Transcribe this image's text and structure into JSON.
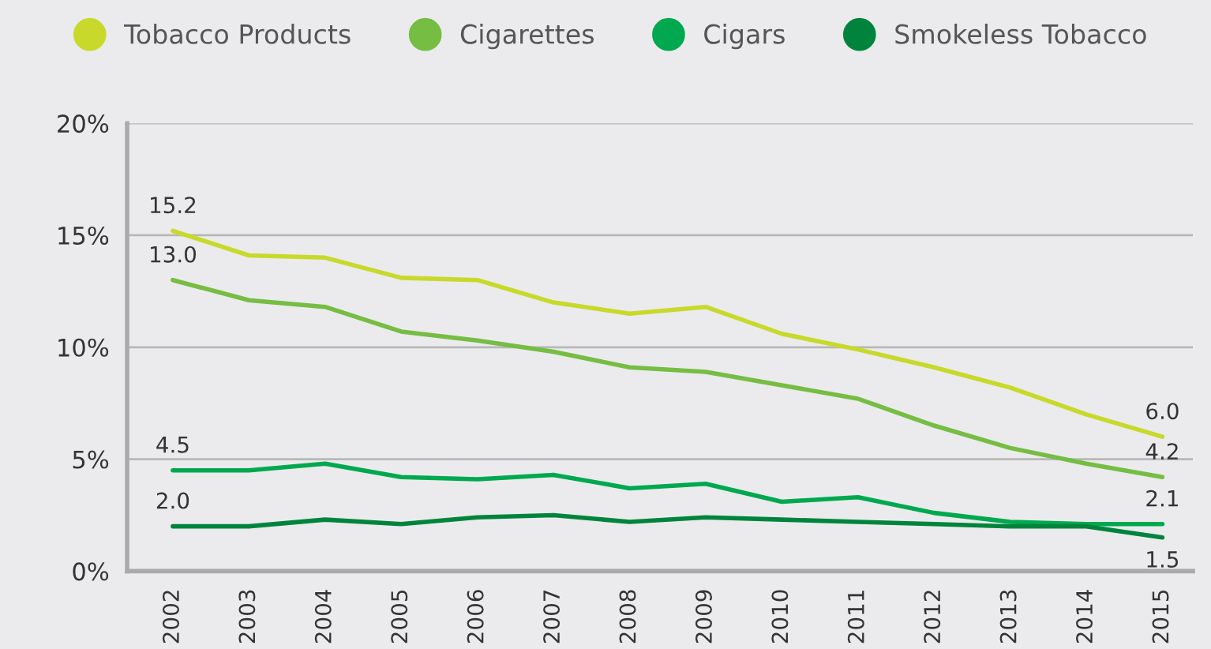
{
  "chart_data": {
    "type": "line",
    "categories": [
      "2002",
      "2003",
      "2004",
      "2005",
      "2006",
      "2007",
      "2008",
      "2009",
      "2010",
      "2011",
      "2012",
      "2013",
      "2014",
      "2015"
    ],
    "series": [
      {
        "name": "Tobacco Products",
        "color": "#c8d92b",
        "values": [
          15.2,
          14.1,
          14.0,
          13.1,
          13.0,
          12.0,
          11.5,
          11.8,
          10.6,
          9.9,
          9.1,
          8.2,
          7.0,
          6.0
        ],
        "value_labels": [
          "15.2",
          null,
          null,
          null,
          null,
          null,
          null,
          null,
          null,
          null,
          null,
          null,
          null,
          "6.0"
        ]
      },
      {
        "name": "Cigarettes",
        "color": "#76bd43",
        "values": [
          13.0,
          12.1,
          11.8,
          10.7,
          10.3,
          9.8,
          9.1,
          8.9,
          8.3,
          7.7,
          6.5,
          5.5,
          4.8,
          4.2
        ],
        "value_labels": [
          "13.0",
          null,
          null,
          null,
          null,
          null,
          null,
          null,
          null,
          null,
          null,
          null,
          null,
          "4.2"
        ]
      },
      {
        "name": "Cigars",
        "color": "#00a94f",
        "values": [
          4.5,
          4.5,
          4.8,
          4.2,
          4.1,
          4.3,
          3.7,
          3.9,
          3.1,
          3.3,
          2.6,
          2.2,
          2.1,
          2.1
        ],
        "value_labels": [
          "4.5",
          null,
          null,
          null,
          null,
          null,
          null,
          null,
          null,
          null,
          null,
          null,
          null,
          "2.1"
        ]
      },
      {
        "name": "Smokeless Tobacco",
        "color": "#00843d",
        "values": [
          2.0,
          2.0,
          2.3,
          2.1,
          2.4,
          2.5,
          2.2,
          2.4,
          2.3,
          2.2,
          2.1,
          2.0,
          2.0,
          1.5
        ],
        "value_labels": [
          "2.0",
          null,
          null,
          null,
          null,
          null,
          null,
          null,
          null,
          null,
          null,
          null,
          null,
          "1.5"
        ]
      }
    ],
    "ylim": [
      0,
      20
    ],
    "yticks": [
      {
        "value": 0,
        "label": "0%"
      },
      {
        "value": 5,
        "label": "5%"
      },
      {
        "value": 10,
        "label": "10%"
      },
      {
        "value": 15,
        "label": "15%"
      },
      {
        "value": 20,
        "label": "20%"
      }
    ],
    "grid": "y",
    "legend": "top",
    "marker": "none",
    "line_style": "solid"
  }
}
